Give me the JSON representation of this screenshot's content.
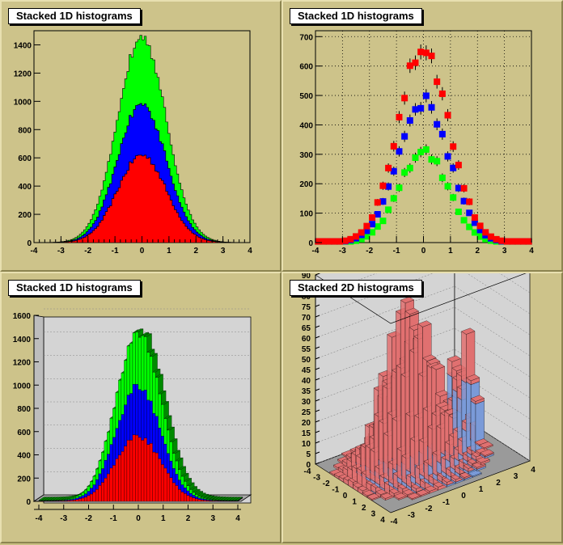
{
  "colors": {
    "pad_bg": "#cdc38a",
    "frame": "#c9bf83",
    "series1": "#ff0000",
    "series2": "#0000ff",
    "series3": "#00ff00",
    "box3d": "#d4d4d4",
    "lego_red": "#e07070",
    "lego_blue": "#7a9ad8"
  },
  "pads": [
    {
      "title": "Stacked 1D histograms"
    },
    {
      "title": "Stacked 1D histograms"
    },
    {
      "title": "Stacked 1D histograms"
    },
    {
      "title": "Stacked 2D histograms"
    }
  ],
  "chart_data": [
    {
      "type": "bar",
      "style": "stacked-histogram",
      "title": "Stacked 1D histograms",
      "xlim": [
        -4,
        4
      ],
      "ylim": [
        0,
        1500
      ],
      "xticks": [
        "-4",
        "-3",
        "-2",
        "-1",
        "0",
        "1",
        "2",
        "3",
        "4"
      ],
      "yticks": [
        "0",
        "200",
        "400",
        "600",
        "800",
        "1000",
        "1200",
        "1400"
      ],
      "series": [
        {
          "peak": 620,
          "sigma": 0.9
        },
        {
          "peak": 360,
          "sigma": 0.9
        },
        {
          "peak": 470,
          "sigma": 0.9
        }
      ],
      "total_peak": 1450
    },
    {
      "type": "scatter",
      "style": "markers-with-error-bars",
      "title": "Stacked 1D histograms",
      "xlim": [
        -4,
        4
      ],
      "ylim": [
        0,
        720
      ],
      "grid": true,
      "xticks": [
        "-4",
        "-3",
        "-2",
        "-1",
        "0",
        "1",
        "2",
        "3",
        "4"
      ],
      "yticks": [
        "0",
        "100",
        "200",
        "300",
        "400",
        "500",
        "600",
        "700"
      ],
      "series": [
        {
          "peak": 660,
          "sigma": 0.95
        },
        {
          "peak": 480,
          "sigma": 0.95
        },
        {
          "peak": 310,
          "sigma": 0.9
        }
      ]
    },
    {
      "type": "bar",
      "style": "lego-stacked-1d",
      "title": "Stacked 1D histograms",
      "xlim": [
        -4,
        4
      ],
      "ylim": [
        0,
        1600
      ],
      "xticks": [
        "-4",
        "-3",
        "-2",
        "-1",
        "0",
        "1",
        "2",
        "3",
        "4"
      ],
      "yticks": [
        "0",
        "200",
        "400",
        "600",
        "800",
        "1000",
        "1200",
        "1400",
        "1600"
      ],
      "series": [
        {
          "peak": 560
        },
        {
          "peak": 420
        },
        {
          "peak": 460
        }
      ]
    },
    {
      "type": "heatmap",
      "style": "lego-stacked-2d",
      "title": "Stacked 2D histograms",
      "xlim": [
        -4,
        4
      ],
      "ylim": [
        -4,
        4
      ],
      "zlim": [
        0,
        90
      ],
      "zticks": [
        "0",
        "5",
        "10",
        "15",
        "20",
        "25",
        "30",
        "35",
        "40",
        "45",
        "50",
        "55",
        "60",
        "65",
        "70",
        "75",
        "80",
        "85",
        "90"
      ],
      "xticks": [
        "-4",
        "-3",
        "-2",
        "-1",
        "0",
        "1",
        "2",
        "3",
        "4"
      ],
      "yticks": [
        "-4",
        "-3",
        "-2",
        "-1",
        "0",
        "1",
        "2",
        "3",
        "4"
      ]
    }
  ]
}
